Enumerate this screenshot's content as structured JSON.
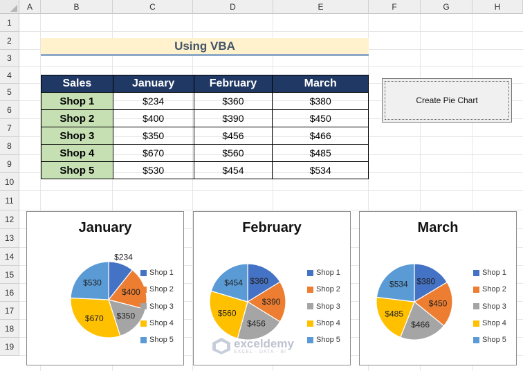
{
  "sheet": {
    "columns": [
      "A",
      "B",
      "C",
      "D",
      "E",
      "F",
      "G",
      "H"
    ],
    "rows": [
      "1",
      "2",
      "3",
      "4",
      "5",
      "6",
      "7",
      "8",
      "9",
      "10",
      "11",
      "12",
      "13",
      "14",
      "15",
      "16",
      "17",
      "18",
      "19"
    ]
  },
  "title": "Using VBA",
  "table": {
    "headers": [
      "Sales",
      "January",
      "February",
      "March"
    ],
    "rows": [
      {
        "shop": "Shop 1",
        "jan": "$234",
        "feb": "$360",
        "mar": "$380"
      },
      {
        "shop": "Shop 2",
        "jan": "$400",
        "feb": "$390",
        "mar": "$450"
      },
      {
        "shop": "Shop 3",
        "jan": "$350",
        "feb": "$456",
        "mar": "$466"
      },
      {
        "shop": "Shop 4",
        "jan": "$670",
        "feb": "$560",
        "mar": "$485"
      },
      {
        "shop": "Shop 5",
        "jan": "$530",
        "feb": "$454",
        "mar": "$534"
      }
    ]
  },
  "button": {
    "label": "Create Pie Chart"
  },
  "legend": [
    "Shop 1",
    "Shop 2",
    "Shop 3",
    "Shop 4",
    "Shop 5"
  ],
  "colors": [
    "#4472c4",
    "#ed7d31",
    "#a5a5a5",
    "#ffc000",
    "#5b9bd5"
  ],
  "chart_data": [
    {
      "type": "pie",
      "title": "January",
      "categories": [
        "Shop 1",
        "Shop 2",
        "Shop 3",
        "Shop 4",
        "Shop 5"
      ],
      "values": [
        234,
        400,
        350,
        670,
        530
      ],
      "labels": [
        "$234",
        "$400",
        "$350",
        "$670",
        "$530"
      ],
      "legend": "right"
    },
    {
      "type": "pie",
      "title": "February",
      "categories": [
        "Shop 1",
        "Shop 2",
        "Shop 3",
        "Shop 4",
        "Shop 5"
      ],
      "values": [
        360,
        390,
        456,
        560,
        454
      ],
      "labels": [
        "$360",
        "$390",
        "$456",
        "$560",
        "$454"
      ],
      "legend": "right"
    },
    {
      "type": "pie",
      "title": "March",
      "categories": [
        "Shop 1",
        "Shop 2",
        "Shop 3",
        "Shop 4",
        "Shop 5"
      ],
      "values": [
        380,
        450,
        466,
        485,
        534
      ],
      "labels": [
        "$380",
        "$450",
        "$466",
        "$485",
        "$534"
      ],
      "legend": "right"
    }
  ],
  "watermark": {
    "name": "exceldemy",
    "tagline": "EXCEL · DATA · BI"
  }
}
